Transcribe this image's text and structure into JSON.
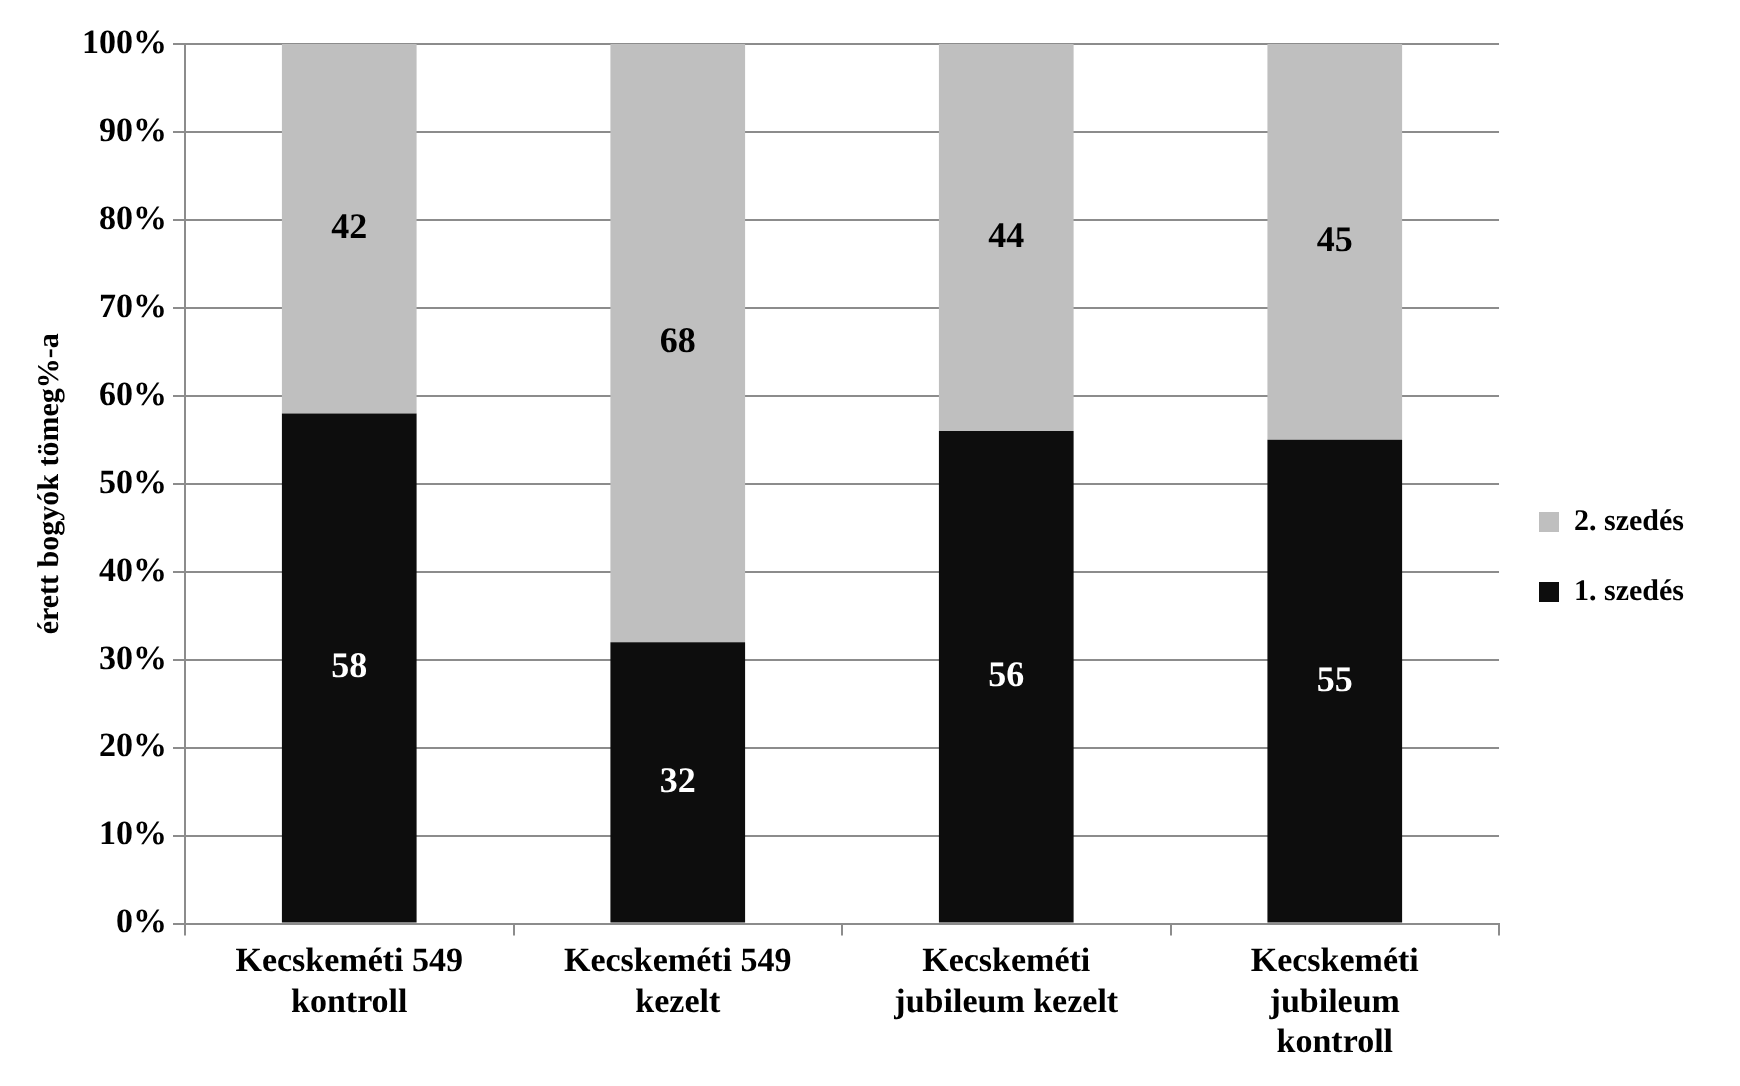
{
  "chart_data": {
    "type": "bar",
    "stacked": true,
    "ylabel": "érett bogyók tömeg%-a",
    "categories": [
      "Kecskeméti 549 kontroll",
      "Kecskeméti 549 kezelt",
      "Kecskeméti jubileum kezelt",
      "Kecskeméti jubileum kontroll"
    ],
    "series": [
      {
        "name": "1. szedés",
        "color": "#0d0d0d",
        "values": [
          58,
          32,
          56,
          55
        ]
      },
      {
        "name": "2. szedés",
        "color": "#bfbfbf",
        "values": [
          42,
          68,
          44,
          45
        ]
      }
    ],
    "ylim": [
      0,
      100
    ],
    "yticks": [
      {
        "value": 0,
        "label": "0%"
      },
      {
        "value": 10,
        "label": "10%"
      },
      {
        "value": 20,
        "label": "20%"
      },
      {
        "value": 30,
        "label": "30%"
      },
      {
        "value": 40,
        "label": "40%"
      },
      {
        "value": 50,
        "label": "50%"
      },
      {
        "value": 60,
        "label": "60%"
      },
      {
        "value": 70,
        "label": "70%"
      },
      {
        "value": 80,
        "label": "80%"
      },
      {
        "value": 90,
        "label": "90%"
      },
      {
        "value": 100,
        "label": "100%"
      }
    ],
    "grid": "y",
    "legend": "right",
    "data_labels": true
  }
}
